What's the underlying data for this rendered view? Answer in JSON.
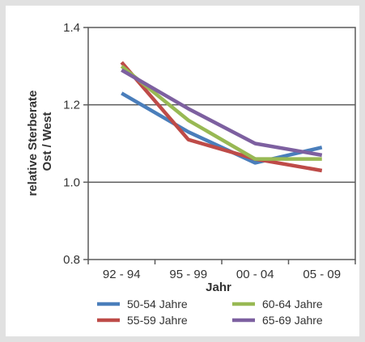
{
  "chart_data": {
    "type": "line",
    "title": "",
    "xlabel": "Jahr",
    "ylabel_line1": "relative Sterberate",
    "ylabel_line2": "Ost / West",
    "categories": [
      "92 - 94",
      "95 - 99",
      "00 - 04",
      "05 - 09"
    ],
    "ylim": [
      0.8,
      1.4
    ],
    "yticks": [
      0.8,
      1.0,
      1.2,
      1.4
    ],
    "ytick_labels": [
      "0.8",
      "1.0",
      "1.2",
      "1.4"
    ],
    "grid": "horizontal",
    "legend_position": "bottom",
    "series": [
      {
        "name": "50-54 Jahre",
        "color": "#4a7ebb",
        "values": [
          1.23,
          1.13,
          1.05,
          1.09
        ]
      },
      {
        "name": "55-59 Jahre",
        "color": "#be4b48",
        "values": [
          1.31,
          1.11,
          1.06,
          1.03
        ]
      },
      {
        "name": "60-64 Jahre",
        "color": "#98b954",
        "values": [
          1.3,
          1.16,
          1.06,
          1.06
        ]
      },
      {
        "name": "65-69 Jahre",
        "color": "#7d60a0",
        "values": [
          1.29,
          1.19,
          1.1,
          1.07
        ]
      }
    ]
  }
}
